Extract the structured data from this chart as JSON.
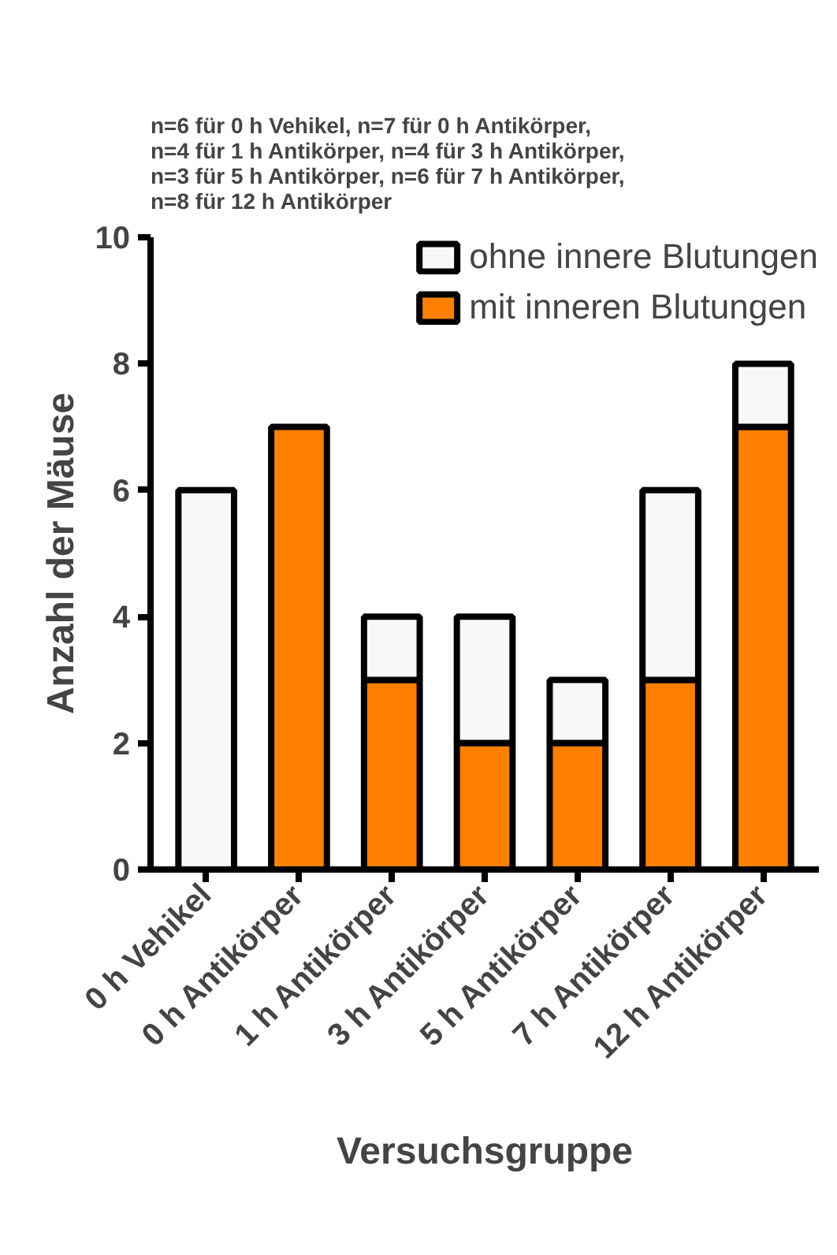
{
  "chart_data": {
    "type": "bar",
    "stacked": true,
    "title": "n=6 für 0 h Vehikel, n=7 für 0 h  Antikörper,\nn=4 für 1 h Antikörper, n=4 für 3 h Antikörper,\nn=3 für 5 h Antikörper, n=6 für 7 h Antikörper,\nn=8 für 12 h Antikörper",
    "xlabel": "Versuchsgruppe",
    "ylabel": "Anzahl der Mäuse",
    "categories": [
      "0 h Vehikel",
      "0 h Antikörper",
      "1 h Antikörper",
      "3 h Antikörper",
      "5 h Antikörper",
      "7 h Antikörper",
      "12 h Antikörper"
    ],
    "series": [
      {
        "name": "mit inneren Blutungen",
        "color": "#ff7f00",
        "values": [
          0,
          7,
          3,
          2,
          2,
          3,
          7
        ]
      },
      {
        "name": "ohne innere Blutungen",
        "color": "#f8f8f8",
        "values": [
          6,
          0,
          1,
          2,
          1,
          3,
          1
        ]
      }
    ],
    "ylim": [
      0,
      10
    ],
    "yticks": [
      0,
      2,
      4,
      6,
      8,
      10
    ],
    "grid": false,
    "legend": "top right"
  }
}
